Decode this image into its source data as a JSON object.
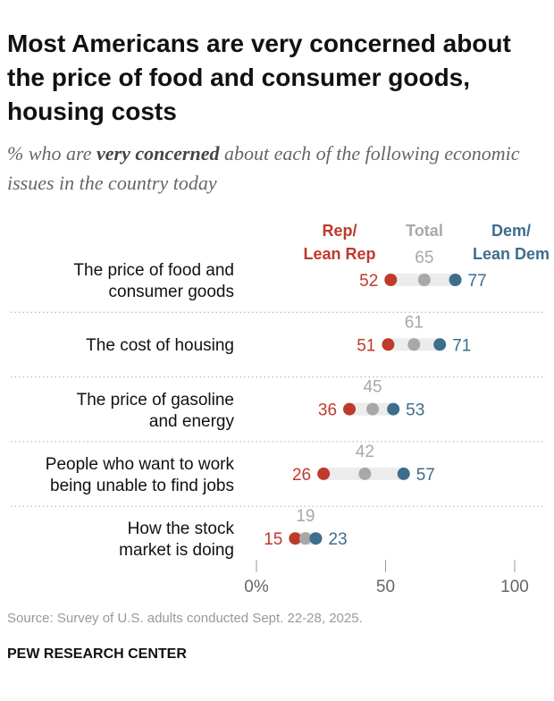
{
  "chart_data": {
    "type": "dot",
    "title": "Most Americans are very concerned about the price of food and consumer goods, housing costs",
    "subtitle": [
      "% who are ",
      "very concerned",
      " about each of the following economic issues in the country today"
    ],
    "categories": [
      "The price of food and\nconsumer goods",
      "The cost of housing",
      "The price of gasoline\nand energy",
      "People who want to work\nbeing unable to find jobs",
      "How the stock\nmarket is doing"
    ],
    "series": [
      {
        "name": "Rep/\nLean Rep",
        "color": "#bf3a2b",
        "values": [
          52,
          51,
          36,
          26,
          15
        ]
      },
      {
        "name": "Total",
        "color": "#a8a8a8",
        "values": [
          65,
          61,
          45,
          42,
          19
        ]
      },
      {
        "name": "Dem/\nLean Dem",
        "color": "#3e6d8e",
        "values": [
          77,
          71,
          53,
          57,
          23
        ]
      }
    ],
    "xlim": [
      0,
      100
    ],
    "xticks": [
      {
        "value": 0,
        "label": "0%"
      },
      50,
      100
    ],
    "source": "Source: Survey of U.S. adults conducted Sept. 22-28, 2025.",
    "brand": "PEW RESEARCH CENTER"
  }
}
